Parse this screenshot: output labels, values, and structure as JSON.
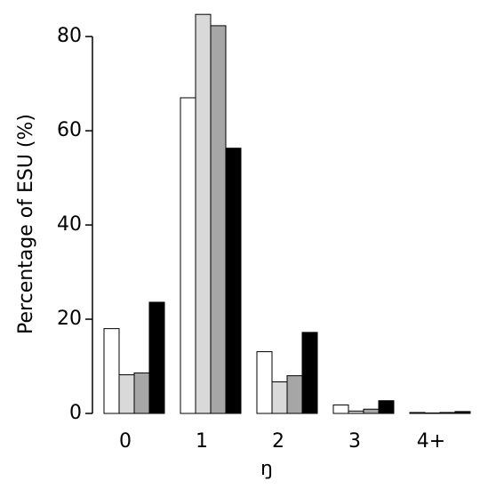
{
  "chart_data": {
    "type": "bar",
    "x_label": "ŋ",
    "y_label": "Percentage of ESU (%)",
    "categories": [
      "0",
      "1",
      "2",
      "3",
      "4+"
    ],
    "series": [
      {
        "color": "#ffffff",
        "values": [
          18,
          67,
          13.1,
          1.8,
          0.2
        ]
      },
      {
        "color": "#d9d9d9",
        "values": [
          8.2,
          84.7,
          6.7,
          0.5,
          0.1
        ]
      },
      {
        "color": "#a6a6a6",
        "values": [
          8.6,
          82.3,
          8,
          0.9,
          0.2
        ]
      },
      {
        "color": "#000000",
        "values": [
          23.6,
          56.3,
          17.2,
          2.7,
          0.4
        ]
      }
    ],
    "ylim": [
      0,
      87
    ],
    "yticks": [
      0,
      20,
      40,
      60,
      80
    ],
    "grid": false
  }
}
